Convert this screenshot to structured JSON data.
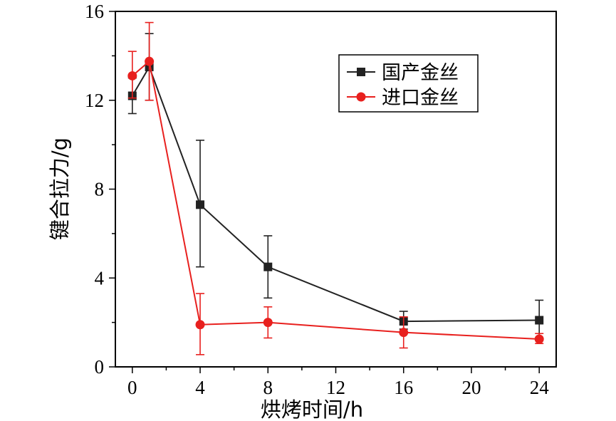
{
  "chart_data": {
    "type": "line",
    "title": "",
    "xlabel": "烘烤时间/h",
    "ylabel": "键合拉力/g",
    "xlim": [
      -1,
      25
    ],
    "ylim": [
      0,
      16
    ],
    "xticks": [
      0,
      4,
      8,
      12,
      16,
      20,
      24
    ],
    "yticks": [
      0,
      4,
      8,
      12,
      16
    ],
    "x_tick_labels": [
      "0",
      "4",
      "8",
      "12",
      "16",
      "20",
      "24"
    ],
    "y_tick_labels": [
      "0",
      "4",
      "8",
      "12",
      "16"
    ],
    "legend_position": "top-right",
    "series": [
      {
        "name": "国产金丝",
        "color": "#222222",
        "marker": "square",
        "x": [
          0,
          1,
          4,
          8,
          16,
          24
        ],
        "y": [
          12.2,
          13.5,
          7.3,
          4.5,
          2.05,
          2.1
        ],
        "err_low": [
          11.4,
          12.0,
          4.5,
          3.1,
          1.7,
          1.2
        ],
        "err_high": [
          13.0,
          15.0,
          10.2,
          5.9,
          2.5,
          3.0
        ]
      },
      {
        "name": "进口金丝",
        "color": "#e8201e",
        "marker": "circle",
        "x": [
          0,
          1,
          4,
          8,
          16,
          24
        ],
        "y": [
          13.1,
          13.75,
          1.9,
          2.0,
          1.55,
          1.25
        ],
        "err_low": [
          12.1,
          12.0,
          0.55,
          1.3,
          0.85,
          1.05
        ],
        "err_high": [
          14.2,
          15.5,
          3.3,
          2.7,
          2.25,
          1.5
        ]
      }
    ]
  }
}
